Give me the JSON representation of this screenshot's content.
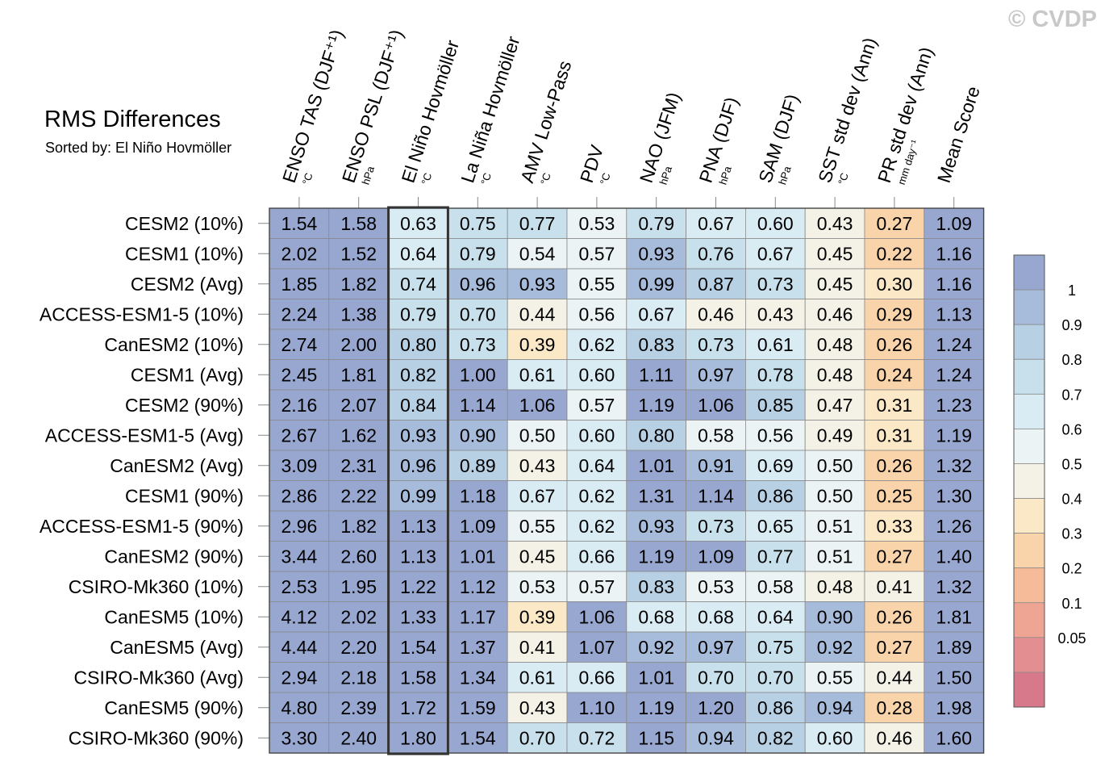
{
  "watermark": "© CVDP",
  "chart_data": {
    "type": "table",
    "title": "RMS Differences",
    "subtitle": "Sorted by: El Niño Hovmöller",
    "highlight_column": 2,
    "columns": [
      {
        "name": "ENSO TAS (DJF⁺¹)",
        "unit": "°C"
      },
      {
        "name": "ENSO PSL (DJF⁺¹)",
        "unit": "hPa"
      },
      {
        "name": "El Niño Hovmöller",
        "unit": "°C"
      },
      {
        "name": "La Niña Hovmöller",
        "unit": "°C"
      },
      {
        "name": "AMV Low-Pass",
        "unit": "°C"
      },
      {
        "name": "PDV",
        "unit": "°C"
      },
      {
        "name": "NAO (JFM)",
        "unit": "hPa"
      },
      {
        "name": "PNA (DJF)",
        "unit": "hPa"
      },
      {
        "name": "SAM (DJF)",
        "unit": "hPa"
      },
      {
        "name": "SST std dev (Ann)",
        "unit": "°C"
      },
      {
        "name": "PR std dev (Ann)",
        "unit": "mm day⁻¹"
      },
      {
        "name": "Mean Score",
        "unit": ""
      }
    ],
    "rows": [
      {
        "name": "CESM2 (10%)",
        "values": [
          "1.54",
          "1.58",
          "0.63",
          "0.75",
          "0.77",
          "0.53",
          "0.79",
          "0.67",
          "0.60",
          "0.43",
          "0.27",
          "1.09"
        ]
      },
      {
        "name": "CESM1 (10%)",
        "values": [
          "2.02",
          "1.52",
          "0.64",
          "0.79",
          "0.54",
          "0.57",
          "0.93",
          "0.76",
          "0.67",
          "0.45",
          "0.22",
          "1.16"
        ]
      },
      {
        "name": "CESM2 (Avg)",
        "values": [
          "1.85",
          "1.82",
          "0.74",
          "0.96",
          "0.93",
          "0.55",
          "0.99",
          "0.87",
          "0.73",
          "0.45",
          "0.30",
          "1.16"
        ]
      },
      {
        "name": "ACCESS-ESM1-5 (10%)",
        "values": [
          "2.24",
          "1.38",
          "0.79",
          "0.70",
          "0.44",
          "0.56",
          "0.67",
          "0.46",
          "0.43",
          "0.46",
          "0.29",
          "1.13"
        ]
      },
      {
        "name": "CanESM2 (10%)",
        "values": [
          "2.74",
          "2.00",
          "0.80",
          "0.73",
          "0.39",
          "0.62",
          "0.83",
          "0.73",
          "0.61",
          "0.48",
          "0.26",
          "1.24"
        ]
      },
      {
        "name": "CESM1 (Avg)",
        "values": [
          "2.45",
          "1.81",
          "0.82",
          "1.00",
          "0.61",
          "0.60",
          "1.11",
          "0.97",
          "0.78",
          "0.48",
          "0.24",
          "1.24"
        ]
      },
      {
        "name": "CESM2 (90%)",
        "values": [
          "2.16",
          "2.07",
          "0.84",
          "1.14",
          "1.06",
          "0.57",
          "1.19",
          "1.06",
          "0.85",
          "0.47",
          "0.31",
          "1.23"
        ]
      },
      {
        "name": "ACCESS-ESM1-5 (Avg)",
        "values": [
          "2.67",
          "1.62",
          "0.93",
          "0.90",
          "0.50",
          "0.60",
          "0.80",
          "0.58",
          "0.56",
          "0.49",
          "0.31",
          "1.19"
        ]
      },
      {
        "name": "CanESM2 (Avg)",
        "values": [
          "3.09",
          "2.31",
          "0.96",
          "0.89",
          "0.43",
          "0.64",
          "1.01",
          "0.91",
          "0.69",
          "0.50",
          "0.26",
          "1.32"
        ]
      },
      {
        "name": "CESM1 (90%)",
        "values": [
          "2.86",
          "2.22",
          "0.99",
          "1.18",
          "0.67",
          "0.62",
          "1.31",
          "1.14",
          "0.86",
          "0.50",
          "0.25",
          "1.30"
        ]
      },
      {
        "name": "ACCESS-ESM1-5 (90%)",
        "values": [
          "2.96",
          "1.82",
          "1.13",
          "1.09",
          "0.55",
          "0.62",
          "0.93",
          "0.73",
          "0.65",
          "0.51",
          "0.33",
          "1.26"
        ]
      },
      {
        "name": "CanESM2 (90%)",
        "values": [
          "3.44",
          "2.60",
          "1.13",
          "1.01",
          "0.45",
          "0.66",
          "1.19",
          "1.09",
          "0.77",
          "0.51",
          "0.27",
          "1.40"
        ]
      },
      {
        "name": "CSIRO-Mk360 (10%)",
        "values": [
          "2.53",
          "1.95",
          "1.22",
          "1.12",
          "0.53",
          "0.57",
          "0.83",
          "0.53",
          "0.58",
          "0.48",
          "0.41",
          "1.32"
        ]
      },
      {
        "name": "CanESM5 (10%)",
        "values": [
          "4.12",
          "2.02",
          "1.33",
          "1.17",
          "0.39",
          "1.06",
          "0.68",
          "0.68",
          "0.64",
          "0.90",
          "0.26",
          "1.81"
        ]
      },
      {
        "name": "CanESM5 (Avg)",
        "values": [
          "4.44",
          "2.20",
          "1.54",
          "1.37",
          "0.41",
          "1.07",
          "0.92",
          "0.97",
          "0.75",
          "0.92",
          "0.27",
          "1.89"
        ]
      },
      {
        "name": "CSIRO-Mk360 (Avg)",
        "values": [
          "2.94",
          "2.18",
          "1.58",
          "1.34",
          "0.61",
          "0.66",
          "1.01",
          "0.70",
          "0.70",
          "0.55",
          "0.44",
          "1.50"
        ]
      },
      {
        "name": "CanESM5 (90%)",
        "values": [
          "4.80",
          "2.39",
          "1.72",
          "1.59",
          "0.43",
          "1.10",
          "1.19",
          "1.20",
          "0.86",
          "0.94",
          "0.28",
          "1.98"
        ]
      },
      {
        "name": "CSIRO-Mk360 (90%)",
        "values": [
          "3.30",
          "2.40",
          "1.80",
          "1.54",
          "0.70",
          "0.72",
          "1.15",
          "0.94",
          "0.82",
          "0.60",
          "0.46",
          "1.60"
        ]
      }
    ],
    "colorbar": {
      "levels": [
        "1",
        "0.9",
        "0.8",
        "0.7",
        "0.6",
        "0.5",
        "0.4",
        "0.3",
        "0.2",
        "0.1",
        "0.05"
      ],
      "thresholds": [
        1,
        0.9,
        0.8,
        0.7,
        0.6,
        0.5,
        0.4,
        0.3,
        0.2,
        0.1,
        0.05
      ],
      "colors": [
        "#97a7d0",
        "#a7bcdb",
        "#b7d0e3",
        "#c8e0ec",
        "#d9ebf3",
        "#ebf3f4",
        "#f4f2e6",
        "#fbe8c6",
        "#f9d4aa",
        "#f6bb98",
        "#eea593",
        "#e38f92",
        "#d7788b"
      ]
    }
  }
}
